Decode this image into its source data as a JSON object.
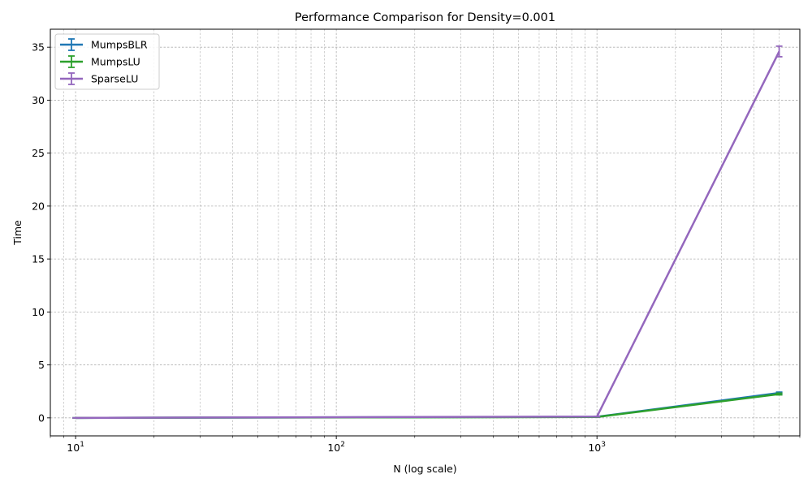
{
  "chart_data": {
    "type": "line",
    "title": "Performance Comparison for Density=0.001",
    "xlabel": "N (log scale)",
    "ylabel": "Time",
    "xscale": "log",
    "xlim": [
      8,
      6000
    ],
    "ylim": [
      -1.7,
      36.7
    ],
    "x_ticks": [
      10,
      100,
      1000
    ],
    "x_tick_labels": [
      {
        "base": "10",
        "exp": "1"
      },
      {
        "base": "10",
        "exp": "2"
      },
      {
        "base": "10",
        "exp": "3"
      }
    ],
    "y_ticks": [
      0,
      5,
      10,
      15,
      20,
      25,
      30,
      35
    ],
    "y_tick_labels": [
      "0",
      "5",
      "10",
      "15",
      "20",
      "25",
      "30",
      "35"
    ],
    "grid": true,
    "legend_position": "top-left",
    "x": [
      10,
      1000,
      5000
    ],
    "series": [
      {
        "name": "MumpsBLR",
        "color": "#1f77b4",
        "values": [
          0.0,
          0.1,
          2.35
        ],
        "errors": [
          0.0,
          0.02,
          0.08
        ]
      },
      {
        "name": "MumpsLU",
        "color": "#2ca02c",
        "values": [
          0.0,
          0.08,
          2.25
        ],
        "errors": [
          0.0,
          0.02,
          0.08
        ]
      },
      {
        "name": "SparseLU",
        "color": "#9467bd",
        "values": [
          0.0,
          0.12,
          34.6
        ],
        "errors": [
          0.0,
          0.03,
          0.5
        ]
      }
    ]
  }
}
